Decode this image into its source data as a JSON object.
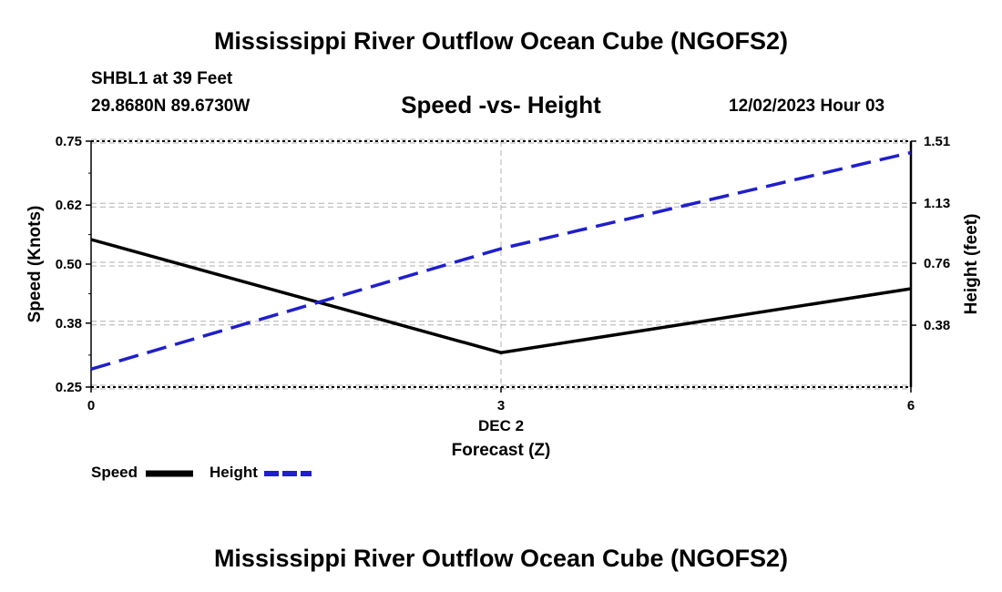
{
  "header": {
    "title": "Mississippi River Outflow Ocean Cube (NGOFS2)",
    "station": "SHBL1 at 39 Feet",
    "coordinates": "29.8680N  89.6730W",
    "subtitle": "Speed -vs- Height",
    "datetime": "12/02/2023 Hour 03"
  },
  "footer": {
    "title": "Mississippi River Outflow Ocean Cube (NGOFS2)"
  },
  "legend": {
    "speed_label": "Speed",
    "height_label": "Height"
  },
  "colors": {
    "speed": "#000000",
    "height": "#1f1fcc",
    "grid": "#b0b0b0"
  },
  "chart_data": {
    "type": "line",
    "title": "Speed -vs- Height",
    "xlabel": "Forecast (Z)",
    "x_date_label": "DEC 2",
    "x": [
      0,
      3,
      6
    ],
    "x_ticks": [
      0,
      3,
      6
    ],
    "xlim": [
      0,
      6
    ],
    "ylabel_left": "Speed (Knots)",
    "ylim_left": [
      0.25,
      0.75
    ],
    "yticks_left": [
      0.25,
      0.38,
      0.5,
      0.62,
      0.75
    ],
    "ytick_labels_left": [
      "0.25",
      "0.38",
      "0.50",
      "0.62",
      "0.75"
    ],
    "ylabel_right": "Height (feet)",
    "ylim_right": [
      0.0,
      1.51
    ],
    "yticks_right": [
      0.38,
      0.76,
      1.13,
      1.51
    ],
    "ytick_labels_right": [
      "0.38",
      "0.76",
      "1.13",
      "1.51"
    ],
    "series": [
      {
        "name": "Speed",
        "axis": "left",
        "style": "solid",
        "values": [
          0.55,
          0.32,
          0.45
        ]
      },
      {
        "name": "Height",
        "axis": "right",
        "style": "dashed",
        "values": [
          0.11,
          0.85,
          1.44
        ]
      }
    ],
    "grid": true
  }
}
